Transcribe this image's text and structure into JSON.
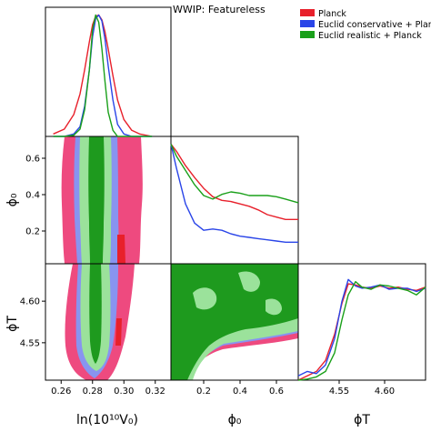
{
  "chart_data": {
    "type": "triangle",
    "title": "WWIP: Featureless",
    "legend_position": "top-right",
    "series": [
      {
        "name": "Planck",
        "color": "#e8202b",
        "fill": "#ee4a7f"
      },
      {
        "name": "Euclid conservative + Planck",
        "color": "#2a45e8",
        "fill": "#8894f0"
      },
      {
        "name": "Euclid realistic + Planck",
        "color": "#1aa01a",
        "fill": "#2a9a2a"
      }
    ],
    "parameters": [
      {
        "name": "lnV0",
        "label": "ln(10¹⁰V₀)",
        "range": [
          0.25,
          0.33
        ],
        "ticks": [
          "0.26",
          "0.28",
          "0.30",
          "0.32"
        ]
      },
      {
        "name": "phi0",
        "label": "ϕ₀",
        "range": [
          0.02,
          0.72
        ],
        "ticks": [
          "0.2",
          "0.4",
          "0.6"
        ]
      },
      {
        "name": "phiT",
        "label": "ϕT",
        "range": [
          4.505,
          4.645
        ],
        "ticks": [
          "4.55",
          "4.60"
        ]
      }
    ],
    "marginals": {
      "lnV0": {
        "x": [
          0.255,
          0.262,
          0.268,
          0.272,
          0.275,
          0.278,
          0.28,
          0.282,
          0.284,
          0.286,
          0.288,
          0.29,
          0.293,
          0.296,
          0.3,
          0.305,
          0.31,
          0.318
        ],
        "Planck": [
          0.02,
          0.06,
          0.18,
          0.35,
          0.55,
          0.78,
          0.92,
          0.99,
          1.0,
          0.96,
          0.86,
          0.72,
          0.5,
          0.3,
          0.14,
          0.05,
          0.02,
          0.0
        ],
        "Euclid conservative + Planck": [
          0.0,
          0.0,
          0.02,
          0.08,
          0.25,
          0.55,
          0.82,
          0.97,
          1.0,
          0.95,
          0.8,
          0.58,
          0.3,
          0.1,
          0.02,
          0.0,
          0.0,
          0.0
        ],
        "Euclid realistic + Planck": [
          0.0,
          0.0,
          0.01,
          0.06,
          0.22,
          0.55,
          0.88,
          1.0,
          0.94,
          0.72,
          0.45,
          0.2,
          0.05,
          0.0,
          0.0,
          0.0,
          0.0,
          0.0
        ]
      },
      "phi0": {
        "x": [
          0.02,
          0.05,
          0.1,
          0.15,
          0.2,
          0.25,
          0.3,
          0.35,
          0.4,
          0.45,
          0.5,
          0.55,
          0.6,
          0.65,
          0.72
        ],
        "Planck": [
          1.0,
          0.94,
          0.82,
          0.72,
          0.63,
          0.56,
          0.53,
          0.52,
          0.5,
          0.48,
          0.45,
          0.41,
          0.39,
          0.37,
          0.37
        ],
        "Euclid conservative + Planck": [
          1.0,
          0.8,
          0.5,
          0.34,
          0.28,
          0.29,
          0.28,
          0.25,
          0.23,
          0.22,
          0.21,
          0.2,
          0.19,
          0.18,
          0.18
        ],
        "Euclid realistic + Planck": [
          1.0,
          0.9,
          0.78,
          0.66,
          0.57,
          0.54,
          0.58,
          0.6,
          0.59,
          0.57,
          0.57,
          0.57,
          0.56,
          0.54,
          0.51
        ]
      },
      "phiT": {
        "x": [
          4.505,
          4.515,
          4.525,
          4.535,
          4.545,
          4.553,
          4.56,
          4.568,
          4.575,
          4.585,
          4.595,
          4.605,
          4.615,
          4.625,
          4.635,
          4.645
        ],
        "Planck": [
          0.0,
          0.04,
          0.08,
          0.18,
          0.42,
          0.7,
          0.88,
          0.87,
          0.85,
          0.84,
          0.86,
          0.84,
          0.85,
          0.83,
          0.82,
          0.85
        ],
        "Euclid conservative + Planck": [
          0.04,
          0.08,
          0.06,
          0.14,
          0.38,
          0.72,
          0.92,
          0.86,
          0.84,
          0.85,
          0.87,
          0.83,
          0.84,
          0.84,
          0.81,
          0.84
        ],
        "Euclid realistic + Planck": [
          0.0,
          0.01,
          0.03,
          0.08,
          0.25,
          0.55,
          0.78,
          0.9,
          0.85,
          0.83,
          0.87,
          0.86,
          0.84,
          0.82,
          0.78,
          0.85
        ]
      }
    }
  }
}
